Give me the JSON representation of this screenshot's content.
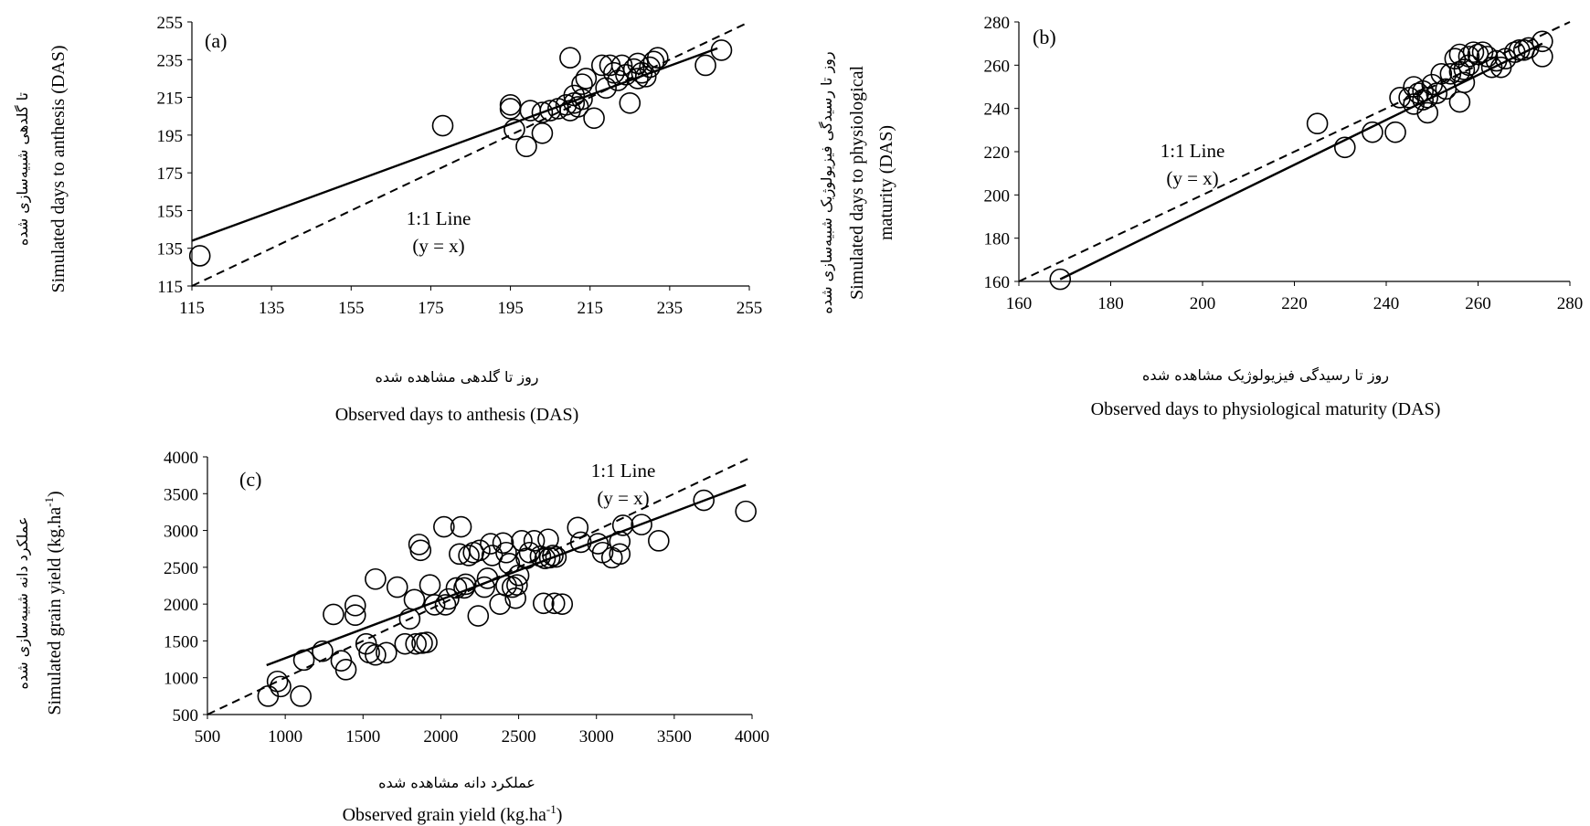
{
  "chart_data": [
    {
      "type": "scatter",
      "panel_tag": "(a)",
      "xlim": [
        115,
        255
      ],
      "ylim": [
        115,
        255
      ],
      "xticks": [
        115,
        135,
        155,
        175,
        195,
        215,
        235,
        255
      ],
      "yticks": [
        115,
        135,
        155,
        175,
        195,
        215,
        235,
        255
      ],
      "xlabel": "Observed days to anthesis (DAS)",
      "xlabel_fa": "روز تا گلدهی مشاهده شده",
      "ylabel": "Simulated days to anthesis (DAS)",
      "ylabel_fa": "تا گلدهی شبیه‌سازی شده",
      "annotation": [
        "1:1 Line",
        "(y = x)"
      ],
      "one_to_one": true,
      "fit_line": [
        [
          115,
          139
        ],
        [
          247,
          241
        ]
      ],
      "points": [
        [
          117,
          131
        ],
        [
          178,
          200
        ],
        [
          195,
          211
        ],
        [
          196,
          198
        ],
        [
          199,
          189
        ],
        [
          195,
          209
        ],
        [
          200,
          208
        ],
        [
          203,
          207
        ],
        [
          203,
          196
        ],
        [
          205,
          208
        ],
        [
          207,
          209
        ],
        [
          209,
          211
        ],
        [
          210,
          208
        ],
        [
          210,
          236
        ],
        [
          211,
          216
        ],
        [
          211,
          212
        ],
        [
          212,
          210
        ],
        [
          213,
          214
        ],
        [
          213,
          222
        ],
        [
          214,
          225
        ],
        [
          216,
          204
        ],
        [
          218,
          232
        ],
        [
          219,
          220
        ],
        [
          220,
          232
        ],
        [
          221,
          228
        ],
        [
          222,
          224
        ],
        [
          223,
          232
        ],
        [
          224,
          227
        ],
        [
          225,
          212
        ],
        [
          226,
          230
        ],
        [
          227,
          225
        ],
        [
          227,
          233
        ],
        [
          228,
          228
        ],
        [
          229,
          226
        ],
        [
          230,
          231
        ],
        [
          231,
          234
        ],
        [
          232,
          236
        ],
        [
          244,
          232
        ],
        [
          248,
          240
        ]
      ]
    },
    {
      "type": "scatter",
      "panel_tag": "(b)",
      "xlim": [
        160,
        280
      ],
      "ylim": [
        160,
        280
      ],
      "xticks": [
        160,
        180,
        200,
        220,
        240,
        260,
        280
      ],
      "yticks": [
        160,
        180,
        200,
        220,
        240,
        260,
        280
      ],
      "xlabel": "Observed days to physiological maturity (DAS)",
      "xlabel_fa": "روز تا رسیدگی فیزیولوژیک مشاهده شده",
      "ylabel": "Simulated days to physiological maturity (DAS)",
      "ylabel_lines": [
        "Simulated days to physiological",
        "maturity (DAS)"
      ],
      "ylabel_fa": "روز تا رسیدگی فیزیولوژیک شبیه‌سازی شده",
      "annotation": [
        "1:1 Line",
        "(y = x)"
      ],
      "one_to_one": true,
      "fit_line": [
        [
          169,
          161
        ],
        [
          274,
          270
        ]
      ],
      "points": [
        [
          169,
          161
        ],
        [
          225,
          233
        ],
        [
          231,
          222
        ],
        [
          237,
          229
        ],
        [
          242,
          229
        ],
        [
          243,
          245
        ],
        [
          245,
          245
        ],
        [
          246,
          250
        ],
        [
          246,
          242
        ],
        [
          247,
          247
        ],
        [
          248,
          244
        ],
        [
          248,
          248
        ],
        [
          249,
          238
        ],
        [
          249,
          245
        ],
        [
          250,
          251
        ],
        [
          251,
          247
        ],
        [
          252,
          256
        ],
        [
          253,
          249
        ],
        [
          254,
          256
        ],
        [
          255,
          263
        ],
        [
          256,
          265
        ],
        [
          256,
          257
        ],
        [
          256,
          243
        ],
        [
          257,
          258
        ],
        [
          257,
          252
        ],
        [
          258,
          264
        ],
        [
          258,
          260
        ],
        [
          259,
          266
        ],
        [
          260,
          265
        ],
        [
          261,
          266
        ],
        [
          262,
          264
        ],
        [
          263,
          259
        ],
        [
          264,
          262
        ],
        [
          265,
          259
        ],
        [
          266,
          263
        ],
        [
          268,
          266
        ],
        [
          269,
          267
        ],
        [
          270,
          267
        ],
        [
          271,
          268
        ],
        [
          274,
          271
        ],
        [
          274,
          264
        ]
      ]
    },
    {
      "type": "scatter",
      "panel_tag": "(c)",
      "xlim": [
        500,
        4000
      ],
      "ylim": [
        500,
        4000
      ],
      "xticks": [
        500,
        1000,
        1500,
        2000,
        2500,
        3000,
        3500,
        4000
      ],
      "yticks": [
        500,
        1000,
        1500,
        2000,
        2500,
        3000,
        3500,
        4000
      ],
      "xlabel": "Observed grain yield (kg.ha",
      "xlabel_fa": "عملکرد دانه  مشاهده شده",
      "ylabel": "Simulated grain yield (kg.ha",
      "ylabel_fa": "عملکرد دانه شبیه‌سازی شده",
      "unit_superscript": "-1",
      "unit_close": ")",
      "annotation": [
        "1:1 Line",
        "(y = x)"
      ],
      "one_to_one": true,
      "fit_line": [
        [
          880,
          1170
        ],
        [
          3960,
          3620
        ]
      ],
      "points": [
        [
          890,
          750
        ],
        [
          950,
          950
        ],
        [
          970,
          880
        ],
        [
          1100,
          750
        ],
        [
          1120,
          1240
        ],
        [
          1240,
          1360
        ],
        [
          1310,
          1860
        ],
        [
          1360,
          1230
        ],
        [
          1390,
          1110
        ],
        [
          1450,
          1980
        ],
        [
          1450,
          1850
        ],
        [
          1520,
          1460
        ],
        [
          1540,
          1340
        ],
        [
          1580,
          1310
        ],
        [
          1580,
          2340
        ],
        [
          1650,
          1340
        ],
        [
          1720,
          2230
        ],
        [
          1770,
          1460
        ],
        [
          1800,
          1800
        ],
        [
          1830,
          2060
        ],
        [
          1840,
          1460
        ],
        [
          1860,
          2810
        ],
        [
          1870,
          2730
        ],
        [
          1880,
          1470
        ],
        [
          1910,
          1480
        ],
        [
          1930,
          2260
        ],
        [
          1960,
          1990
        ],
        [
          2020,
          3050
        ],
        [
          2030,
          1990
        ],
        [
          2050,
          2070
        ],
        [
          2100,
          2220
        ],
        [
          2120,
          2680
        ],
        [
          2130,
          3050
        ],
        [
          2150,
          2220
        ],
        [
          2160,
          2270
        ],
        [
          2180,
          2660
        ],
        [
          2210,
          2700
        ],
        [
          2240,
          1840
        ],
        [
          2250,
          2730
        ],
        [
          2280,
          2230
        ],
        [
          2300,
          2350
        ],
        [
          2320,
          2820
        ],
        [
          2330,
          2660
        ],
        [
          2380,
          2000
        ],
        [
          2400,
          2830
        ],
        [
          2420,
          2250
        ],
        [
          2420,
          2700
        ],
        [
          2440,
          2550
        ],
        [
          2460,
          2230
        ],
        [
          2480,
          2080
        ],
        [
          2490,
          2260
        ],
        [
          2500,
          2390
        ],
        [
          2520,
          2860
        ],
        [
          2550,
          2620
        ],
        [
          2570,
          2700
        ],
        [
          2600,
          2860
        ],
        [
          2640,
          2650
        ],
        [
          2660,
          2010
        ],
        [
          2670,
          2620
        ],
        [
          2690,
          2880
        ],
        [
          2700,
          2630
        ],
        [
          2720,
          2660
        ],
        [
          2730,
          2010
        ],
        [
          2740,
          2640
        ],
        [
          2780,
          2000
        ],
        [
          2880,
          3040
        ],
        [
          2900,
          2840
        ],
        [
          3010,
          2820
        ],
        [
          3040,
          2700
        ],
        [
          3100,
          2630
        ],
        [
          3150,
          2850
        ],
        [
          3150,
          2680
        ],
        [
          3170,
          3070
        ],
        [
          3290,
          3080
        ],
        [
          3400,
          2860
        ],
        [
          3690,
          3410
        ],
        [
          3960,
          3260
        ]
      ]
    }
  ]
}
